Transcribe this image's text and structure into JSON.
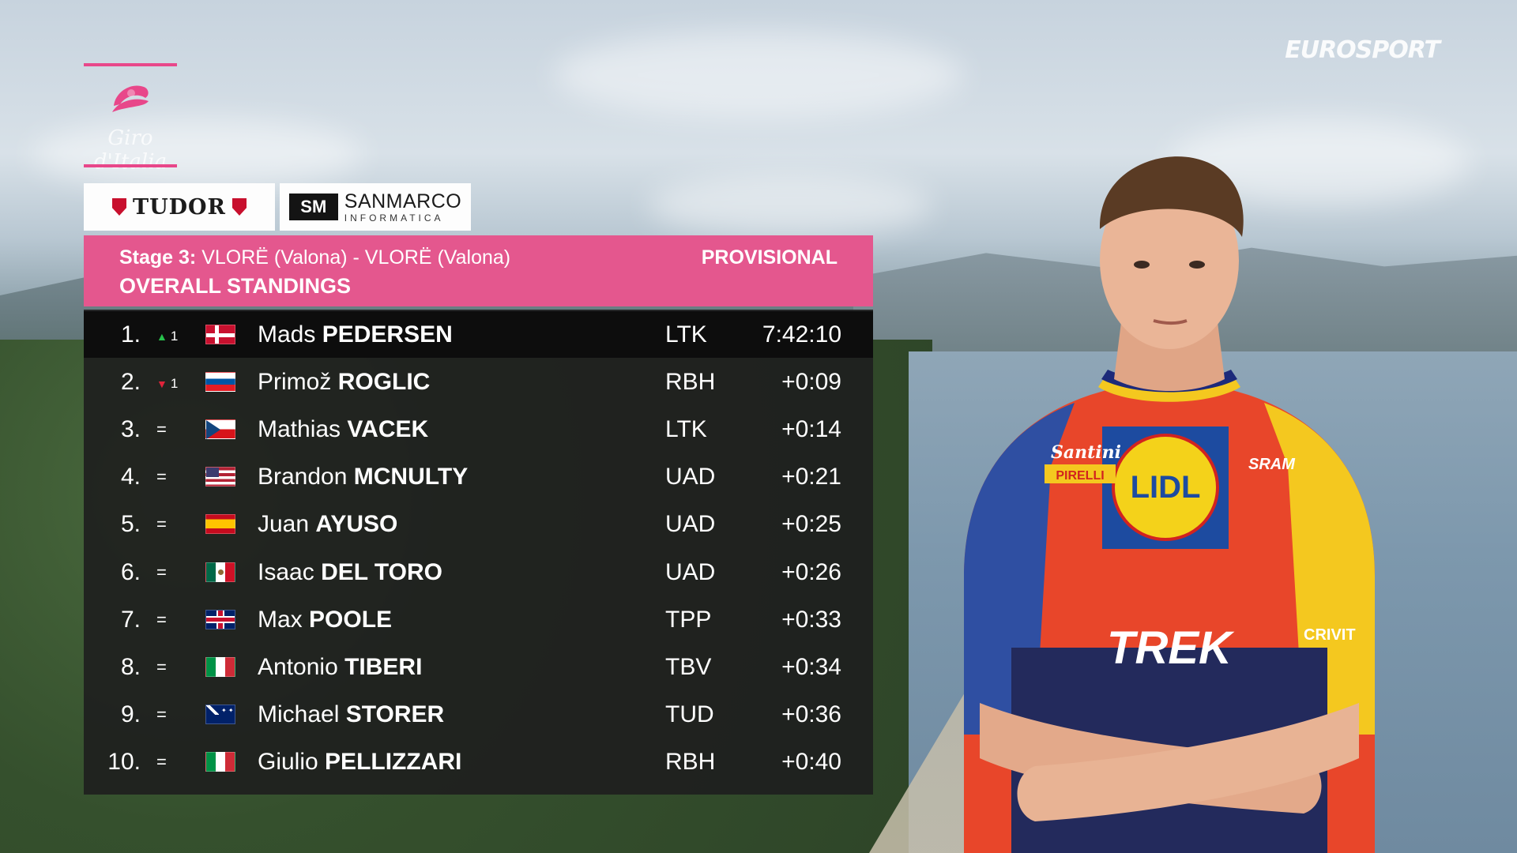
{
  "broadcaster": {
    "name": "EUROSPORT"
  },
  "race_logo": {
    "wordmark": "Giro d'Italia",
    "color": "#e8478a"
  },
  "sponsors": [
    {
      "name": "TUDOR"
    },
    {
      "name_line1": "SANMARCO",
      "name_line2": "INFORMATICA",
      "mark": "SM"
    }
  ],
  "header": {
    "stage_label": "Stage 3:",
    "stage_route": "VLORË (Valona) - VLORË (Valona)",
    "title": "OVERALL STANDINGS",
    "status": "PROVISIONAL",
    "color": "#e4578e"
  },
  "standings": [
    {
      "pos": "1.",
      "move": "up",
      "move_num": "1",
      "flag": "denmark",
      "first": "Mads",
      "last": "PEDERSEN",
      "team": "LTK",
      "time": "7:42:10"
    },
    {
      "pos": "2.",
      "move": "down",
      "move_num": "1",
      "flag": "slovenia",
      "first": "Primož",
      "last": "ROGLIC",
      "team": "RBH",
      "time": "+0:09"
    },
    {
      "pos": "3.",
      "move": "same",
      "move_num": "=",
      "flag": "czechia",
      "first": "Mathias",
      "last": "VACEK",
      "team": "LTK",
      "time": "+0:14"
    },
    {
      "pos": "4.",
      "move": "same",
      "move_num": "=",
      "flag": "usa",
      "first": "Brandon",
      "last": "MCNULTY",
      "team": "UAD",
      "time": "+0:21"
    },
    {
      "pos": "5.",
      "move": "same",
      "move_num": "=",
      "flag": "spain",
      "first": "Juan",
      "last": "AYUSO",
      "team": "UAD",
      "time": "+0:25"
    },
    {
      "pos": "6.",
      "move": "same",
      "move_num": "=",
      "flag": "mexico",
      "first": "Isaac",
      "last": "DEL TORO",
      "team": "UAD",
      "time": "+0:26"
    },
    {
      "pos": "7.",
      "move": "same",
      "move_num": "=",
      "flag": "great-britain",
      "first": "Max",
      "last": "POOLE",
      "team": "TPP",
      "time": "+0:33"
    },
    {
      "pos": "8.",
      "move": "same",
      "move_num": "=",
      "flag": "italy",
      "first": "Antonio",
      "last": "TIBERI",
      "team": "TBV",
      "time": "+0:34"
    },
    {
      "pos": "9.",
      "move": "same",
      "move_num": "=",
      "flag": "australia",
      "first": "Michael",
      "last": "STORER",
      "team": "TUD",
      "time": "+0:36"
    },
    {
      "pos": "10.",
      "move": "same",
      "move_num": "=",
      "flag": "italy",
      "first": "Giulio",
      "last": "PELLIZZARI",
      "team": "RBH",
      "time": "+0:40"
    }
  ],
  "rider_jersey": {
    "sponsor_main": "LIDL",
    "sponsor_bike": "TREK",
    "sponsor_small1": "Santini",
    "sponsor_small2": "PIRELLI",
    "sponsor_small3": "SRAM",
    "sponsor_sleeve": "CRIVIT"
  }
}
